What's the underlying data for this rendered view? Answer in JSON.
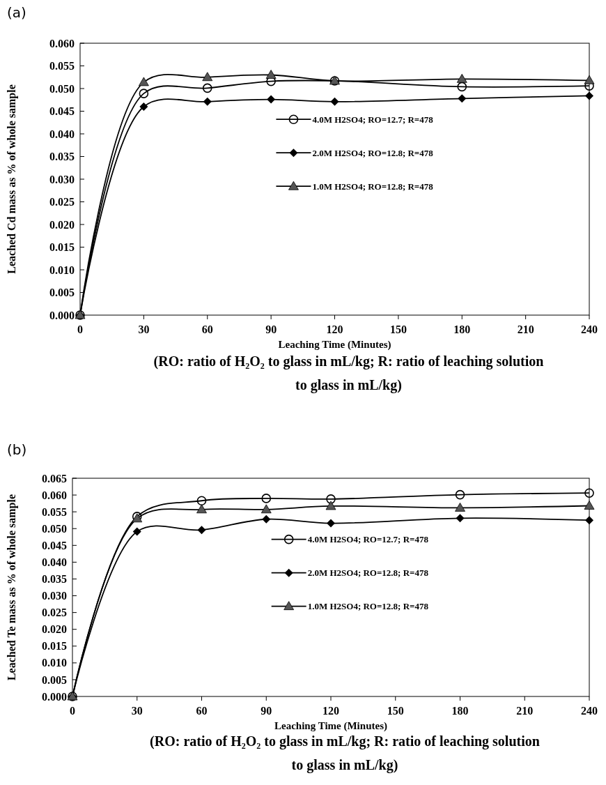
{
  "chart_data": [
    {
      "type": "line",
      "title": "(a)",
      "xlabel": "Leaching Time (Minutes)",
      "ylabel": "Leached Cd mass as % of whole sample",
      "x": [
        0,
        30,
        60,
        90,
        120,
        180,
        240
      ],
      "xlim": [
        0,
        240
      ],
      "xticks": [
        0,
        30,
        60,
        90,
        120,
        150,
        180,
        210,
        240
      ],
      "ylim": [
        0,
        0.06
      ],
      "yticks": [
        {
          "value": 0,
          "label": "0.000"
        },
        {
          "value": 0.005,
          "label": "0.005"
        },
        {
          "value": 0.01,
          "label": "0.010"
        },
        {
          "value": 0.015,
          "label": "0.015"
        },
        {
          "value": 0.02,
          "label": "0.020"
        },
        {
          "value": 0.025,
          "label": "0.025"
        },
        {
          "value": 0.03,
          "label": "0.030"
        },
        {
          "value": 0.035,
          "label": "0.035"
        },
        {
          "value": 0.04,
          "label": "0.040"
        },
        {
          "value": 0.045,
          "label": "0.045"
        },
        {
          "value": 0.05,
          "label": "0.050"
        },
        {
          "value": 0.055,
          "label": "0.055"
        },
        {
          "value": 0.06,
          "label": "0.060"
        }
      ],
      "grid": false,
      "legend": "right",
      "annotations": [
        "(RO: ratio of H₂O₂ to glass in mL/kg;  R: ratio of leaching solution to glass in mL/kg)"
      ],
      "series": [
        {
          "name": "4.0M H2SO4; RO=12.7; R=478",
          "color": "#000000",
          "marker": "circle",
          "values": [
            0,
            0.0489,
            0.0501,
            0.0516,
            0.0517,
            0.0504,
            0.0506
          ]
        },
        {
          "name": "2.0M H2SO4; RO=12.8; R=478",
          "color": "#000000",
          "marker": "diamond",
          "values": [
            0,
            0.046,
            0.0471,
            0.0476,
            0.0471,
            0.0478,
            0.0484
          ]
        },
        {
          "name": "1.0M H2SO4; RO=12.8; R=478",
          "color": "#000000",
          "marker": "triangle",
          "values": [
            0,
            0.0514,
            0.0525,
            0.053,
            0.0517,
            0.0521,
            0.0518
          ]
        }
      ]
    },
    {
      "type": "line",
      "title": "(b)",
      "xlabel": "Leaching Time (Minutes)",
      "ylabel": "Leached Te mass as % of whole sample",
      "x": [
        0,
        30,
        60,
        90,
        120,
        180,
        240
      ],
      "xlim": [
        0,
        240
      ],
      "xticks": [
        0,
        30,
        60,
        90,
        120,
        150,
        180,
        210,
        240
      ],
      "ylim": [
        0,
        0.065
      ],
      "yticks": [
        {
          "value": 0,
          "label": "0.000"
        },
        {
          "value": 0.005,
          "label": "0.005"
        },
        {
          "value": 0.01,
          "label": "0.010"
        },
        {
          "value": 0.015,
          "label": "0.015"
        },
        {
          "value": 0.02,
          "label": "0.020"
        },
        {
          "value": 0.025,
          "label": "0.025"
        },
        {
          "value": 0.03,
          "label": "0.030"
        },
        {
          "value": 0.035,
          "label": "0.035"
        },
        {
          "value": 0.04,
          "label": "0.040"
        },
        {
          "value": 0.045,
          "label": "0.045"
        },
        {
          "value": 0.05,
          "label": "0.050"
        },
        {
          "value": 0.055,
          "label": "0.055"
        },
        {
          "value": 0.06,
          "label": "0.060"
        },
        {
          "value": 0.065,
          "label": "0.065"
        }
      ],
      "grid": false,
      "legend": "right",
      "annotations": [
        "(RO: ratio of H₂O₂ to glass in mL/kg;  R: ratio of leaching solution to glass in mL/kg)"
      ],
      "series": [
        {
          "name": "4.0M H2SO4; RO=12.7; R=478",
          "color": "#000000",
          "marker": "circle",
          "values": [
            0,
            0.0536,
            0.0583,
            0.059,
            0.0588,
            0.0601,
            0.0606
          ]
        },
        {
          "name": "2.0M H2SO4; RO=12.8; R=478",
          "color": "#000000",
          "marker": "diamond",
          "values": [
            0,
            0.0491,
            0.0496,
            0.0528,
            0.0516,
            0.0531,
            0.0525
          ]
        },
        {
          "name": "1.0M H2SO4; RO=12.8; R=478",
          "color": "#000000",
          "marker": "triangle",
          "values": [
            0,
            0.053,
            0.0557,
            0.0557,
            0.0567,
            0.0562,
            0.0568
          ]
        }
      ]
    }
  ]
}
